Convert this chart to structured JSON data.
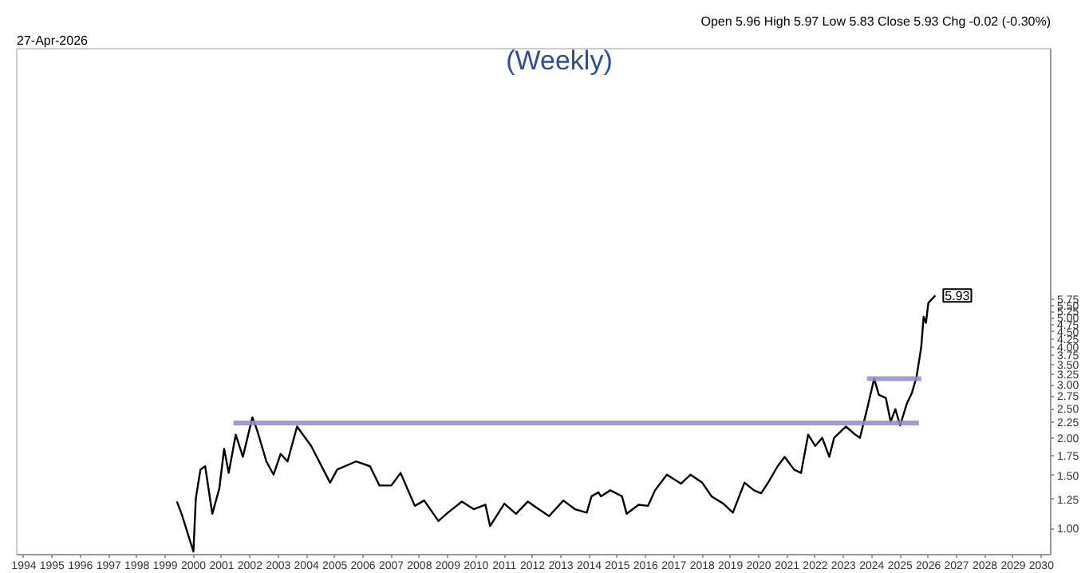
{
  "chart_data": {
    "type": "line",
    "title": "(Weekly)",
    "annotations": [
      "27-Apr-2026",
      "Open 5.96 High 5.97 Low 5.83 Close 5.93 Chg -0.02 (-0.30%)",
      {
        "text": "5.93",
        "x": "2026-04",
        "y": 5.93
      }
    ],
    "log": "y",
    "line_style": "solid",
    "marker": "none",
    "xlim": [
      "1993-10",
      "2030-05"
    ],
    "xticks": [
      {
        "value": "1994",
        "label": "1994"
      },
      {
        "value": "1995",
        "label": "1995"
      },
      {
        "value": "1996",
        "label": "1996"
      },
      {
        "value": "1997",
        "label": "1997"
      },
      {
        "value": "1998",
        "label": "1998"
      },
      {
        "value": "1999",
        "label": "1999"
      },
      {
        "value": "2000",
        "label": "2000"
      },
      {
        "value": "2001",
        "label": "2001"
      },
      {
        "value": "2002",
        "label": "2002"
      },
      {
        "value": "2003",
        "label": "2003"
      },
      {
        "value": "2004",
        "label": "2004"
      },
      {
        "value": "2005",
        "label": "2005"
      },
      {
        "value": "2006",
        "label": "2006"
      },
      {
        "value": "2007",
        "label": "2007"
      },
      {
        "value": "2008",
        "label": "2008"
      },
      {
        "value": "2009",
        "label": "2009"
      },
      {
        "value": "2010",
        "label": "2010"
      },
      {
        "value": "2011",
        "label": "2011"
      },
      {
        "value": "2012",
        "label": "2012"
      },
      {
        "value": "2013",
        "label": "2013"
      },
      {
        "value": "2014",
        "label": "2014"
      },
      {
        "value": "2015",
        "label": "2015"
      },
      {
        "value": "2016",
        "label": "2016"
      },
      {
        "value": "2017",
        "label": "2017"
      },
      {
        "value": "2018",
        "label": "2018"
      },
      {
        "value": "2019",
        "label": "2019"
      },
      {
        "value": "2020",
        "label": "2020"
      },
      {
        "value": "2021",
        "label": "2021"
      },
      {
        "value": "2022",
        "label": "2022"
      },
      {
        "value": "2023",
        "label": "2023"
      },
      {
        "value": "2024",
        "label": "2024"
      },
      {
        "value": "2025",
        "label": "2025"
      },
      {
        "value": "2026",
        "label": "2026"
      },
      {
        "value": "2027",
        "label": "2027"
      },
      {
        "value": "2028",
        "label": "2028"
      },
      {
        "value": "2029",
        "label": "2029"
      },
      {
        "value": "2030",
        "label": "2030"
      }
    ],
    "ylim": [
      0.82,
      39
    ],
    "yticks": [
      {
        "value": 1,
        "label": "1.00"
      },
      {
        "value": 1.25,
        "label": "1.25"
      },
      {
        "value": 1.5,
        "label": "1.50"
      },
      {
        "value": 1.75,
        "label": "1.75"
      },
      {
        "value": 2,
        "label": "2.00"
      },
      {
        "value": 2.25,
        "label": "2.25"
      },
      {
        "value": 2.5,
        "label": "2.50"
      },
      {
        "value": 2.75,
        "label": "2.75"
      },
      {
        "value": 3,
        "label": "3.00"
      },
      {
        "value": 3.25,
        "label": "3.25"
      },
      {
        "value": 3.5,
        "label": "3.50"
      },
      {
        "value": 3.75,
        "label": "3.75"
      },
      {
        "value": 4,
        "label": "4.00"
      },
      {
        "value": 4.25,
        "label": "4.25"
      },
      {
        "value": 4.5,
        "label": "4.50"
      },
      {
        "value": 4.75,
        "label": "4.75"
      },
      {
        "value": 5,
        "label": "5.00"
      },
      {
        "value": 5.25,
        "label": "5.25"
      },
      {
        "value": 5.5,
        "label": "5.50"
      },
      {
        "value": 5.75,
        "label": "5.75"
      }
    ],
    "series": [
      {
        "color": "#000000",
        "x": [
          "1999-06",
          "1999-08",
          "2000-01",
          "2000-02",
          "2000-04",
          "2000-06",
          "2000-09",
          "2000-12",
          "2001-02",
          "2001-04",
          "2001-07",
          "2001-10",
          "2002-02",
          "2002-04",
          "2002-08",
          "2002-11",
          "2003-02",
          "2003-05",
          "2003-09",
          "2004-03",
          "2004-11",
          "2005-02",
          "2005-10",
          "2006-04",
          "2006-08",
          "2007-01",
          "2007-05",
          "2007-11",
          "2008-03",
          "2008-09",
          "2009-01",
          "2009-07",
          "2009-12",
          "2010-05",
          "2010-07",
          "2011-01",
          "2011-06",
          "2011-11",
          "2012-03",
          "2012-08",
          "2013-02",
          "2013-07",
          "2013-12",
          "2014-02",
          "2014-05",
          "2014-06",
          "2014-10",
          "2015-03",
          "2015-05",
          "2015-10",
          "2016-02",
          "2016-05",
          "2016-10",
          "2017-04",
          "2017-08",
          "2018-01",
          "2018-05",
          "2018-10",
          "2019-02",
          "2019-07",
          "2019-11",
          "2020-02",
          "2020-05",
          "2020-09",
          "2020-12",
          "2021-04",
          "2021-07",
          "2021-10",
          "2022-01",
          "2022-04",
          "2022-07",
          "2022-09",
          "2023-02",
          "2023-06",
          "2023-08",
          "2023-11",
          "2024-02",
          "2024-04",
          "2024-07",
          "2024-09",
          "2024-11",
          "2025-01",
          "2025-04",
          "2025-06",
          "2025-08",
          "2025-10",
          "2025-11",
          "2025-12",
          "2026-01",
          "2026-04"
        ],
        "values": [
          1.23,
          1.12,
          0.84,
          1.26,
          1.57,
          1.61,
          1.12,
          1.36,
          1.84,
          1.53,
          2.05,
          1.73,
          2.34,
          2.13,
          1.67,
          1.51,
          1.77,
          1.67,
          2.18,
          1.88,
          1.42,
          1.57,
          1.67,
          1.61,
          1.39,
          1.39,
          1.53,
          1.19,
          1.24,
          1.06,
          1.13,
          1.23,
          1.16,
          1.2,
          1.02,
          1.21,
          1.12,
          1.23,
          1.17,
          1.1,
          1.24,
          1.16,
          1.13,
          1.28,
          1.32,
          1.28,
          1.34,
          1.28,
          1.12,
          1.2,
          1.19,
          1.34,
          1.51,
          1.41,
          1.51,
          1.42,
          1.28,
          1.21,
          1.13,
          1.42,
          1.34,
          1.31,
          1.42,
          1.61,
          1.73,
          1.57,
          1.53,
          2.05,
          1.88,
          2.0,
          1.73,
          2.0,
          2.18,
          2.05,
          2.0,
          2.49,
          3.14,
          2.78,
          2.71,
          2.26,
          2.49,
          2.2,
          2.61,
          2.81,
          3.18,
          4.0,
          5.04,
          4.81,
          5.6,
          5.93
        ]
      },
      {
        "color": "#8c8cd0",
        "x": [
          "2001-06",
          "2025-09"
        ],
        "values": [
          2.24,
          2.24
        ]
      },
      {
        "color": "#8c8cd0",
        "x": [
          "2023-11",
          "2025-10"
        ],
        "values": [
          3.14,
          3.14
        ]
      }
    ]
  }
}
